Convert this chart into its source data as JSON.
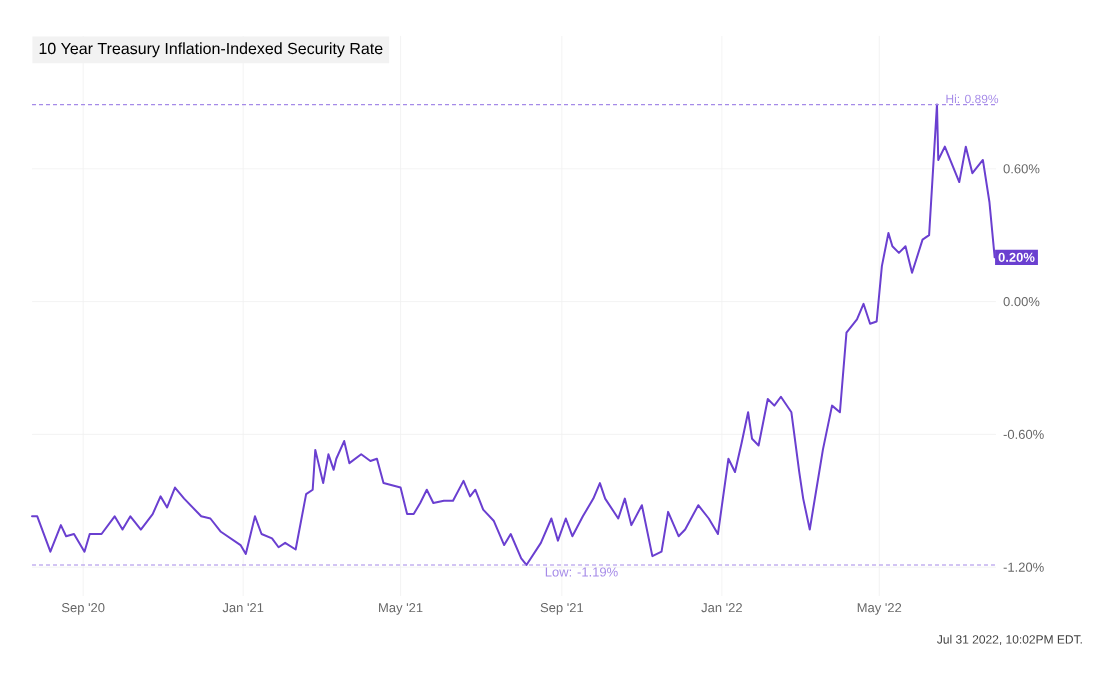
{
  "chart_data": {
    "type": "line",
    "title": "10 Year Treasury Inflation-Indexed Security Rate",
    "x": [
      "2020-07-24",
      "2020-07-28",
      "2020-08-07",
      "2020-08-15",
      "2020-08-19",
      "2020-08-25",
      "2020-09-02",
      "2020-09-06",
      "2020-09-15",
      "2020-09-25",
      "2020-10-01",
      "2020-10-07",
      "2020-10-15",
      "2020-10-24",
      "2020-10-30",
      "2020-11-04",
      "2020-11-10",
      "2020-11-17",
      "2020-11-30",
      "2020-12-07",
      "2020-12-15",
      "2020-12-30",
      "2021-01-03",
      "2021-01-10",
      "2021-01-15",
      "2021-01-23",
      "2021-01-28",
      "2021-02-02",
      "2021-02-10",
      "2021-02-18",
      "2021-02-23",
      "2021-02-25",
      "2021-03-03",
      "2021-03-07",
      "2021-03-11",
      "2021-03-13",
      "2021-03-19",
      "2021-03-23",
      "2021-04-01",
      "2021-04-08",
      "2021-04-13",
      "2021-04-18",
      "2021-05-01",
      "2021-05-06",
      "2021-05-11",
      "2021-05-16",
      "2021-05-21",
      "2021-05-26",
      "2021-06-03",
      "2021-06-10",
      "2021-06-18",
      "2021-06-23",
      "2021-06-27",
      "2021-07-03",
      "2021-07-11",
      "2021-07-19",
      "2021-07-24",
      "2021-08-01",
      "2021-08-05",
      "2021-08-16",
      "2021-08-24",
      "2021-08-29",
      "2021-09-04",
      "2021-09-09",
      "2021-09-17",
      "2021-09-25",
      "2021-09-30",
      "2021-10-04",
      "2021-10-14",
      "2021-10-19",
      "2021-10-24",
      "2021-11-01",
      "2021-11-09",
      "2021-11-16",
      "2021-11-21",
      "2021-11-29",
      "2021-12-04",
      "2021-12-14",
      "2021-12-22",
      "2021-12-29",
      "2022-01-06",
      "2022-01-11",
      "2022-01-16",
      "2022-01-21",
      "2022-01-24",
      "2022-01-29",
      "2022-02-05",
      "2022-02-10",
      "2022-02-15",
      "2022-02-23",
      "2022-03-01",
      "2022-03-04",
      "2022-03-09",
      "2022-03-14",
      "2022-03-19",
      "2022-03-26",
      "2022-04-01",
      "2022-04-06",
      "2022-04-14",
      "2022-04-19",
      "2022-04-24",
      "2022-04-29",
      "2022-05-03",
      "2022-05-08",
      "2022-05-11",
      "2022-05-16",
      "2022-05-21",
      "2022-05-26",
      "2022-06-03",
      "2022-06-08",
      "2022-06-14",
      "2022-06-15",
      "2022-06-20",
      "2022-07-01",
      "2022-07-06",
      "2022-07-11",
      "2022-07-19",
      "2022-07-24",
      "2022-07-28"
    ],
    "series": [
      {
        "color": "#6a3fd0",
        "values": [
          -0.97,
          -0.97,
          -1.13,
          -1.01,
          -1.06,
          -1.05,
          -1.13,
          -1.05,
          -1.05,
          -0.97,
          -1.03,
          -0.97,
          -1.03,
          -0.96,
          -0.88,
          -0.93,
          -0.84,
          -0.89,
          -0.97,
          -0.98,
          -1.04,
          -1.1,
          -1.14,
          -0.97,
          -1.05,
          -1.07,
          -1.11,
          -1.09,
          -1.12,
          -0.87,
          -0.85,
          -0.67,
          -0.82,
          -0.69,
          -0.76,
          -0.71,
          -0.63,
          -0.73,
          -0.69,
          -0.72,
          -0.71,
          -0.82,
          -0.84,
          -0.96,
          -0.96,
          -0.91,
          -0.85,
          -0.91,
          -0.9,
          -0.9,
          -0.81,
          -0.88,
          -0.85,
          -0.94,
          -0.99,
          -1.1,
          -1.05,
          -1.16,
          -1.19,
          -1.09,
          -0.98,
          -1.08,
          -0.98,
          -1.06,
          -0.97,
          -0.89,
          -0.82,
          -0.89,
          -0.98,
          -0.89,
          -1.01,
          -0.92,
          -1.15,
          -1.13,
          -0.95,
          -1.06,
          -1.03,
          -0.92,
          -0.98,
          -1.05,
          -0.71,
          -0.77,
          -0.64,
          -0.5,
          -0.62,
          -0.65,
          -0.44,
          -0.47,
          -0.43,
          -0.5,
          -0.77,
          -0.89,
          -1.03,
          -0.85,
          -0.67,
          -0.47,
          -0.5,
          -0.14,
          -0.08,
          -0.01,
          -0.1,
          -0.09,
          0.16,
          0.31,
          0.25,
          0.22,
          0.25,
          0.13,
          0.28,
          0.3,
          0.89,
          0.64,
          0.7,
          0.54,
          0.7,
          0.58,
          0.64,
          0.45,
          0.2
        ]
      }
    ],
    "xlim": [
      "2020-07-24",
      "2022-07-29"
    ],
    "xticks": [
      {
        "value": "2020-09-01",
        "label": "Sep '20"
      },
      {
        "value": "2021-01-01",
        "label": "Jan '21"
      },
      {
        "value": "2021-05-01",
        "label": "May '21"
      },
      {
        "value": "2021-09-01",
        "label": "Sep '21"
      },
      {
        "value": "2022-01-01",
        "label": "Jan '22"
      },
      {
        "value": "2022-05-01",
        "label": "May '22"
      }
    ],
    "ylim": [
      -1.33,
      1.2
    ],
    "yticks": [
      {
        "value": -1.2,
        "label": "-1.20%"
      },
      {
        "value": -0.6,
        "label": "-0.60%"
      },
      {
        "value": 0,
        "label": "0.00%"
      },
      {
        "value": 0.6,
        "label": "0.60%"
      }
    ],
    "ref_lines": [
      {
        "axis": "y",
        "value": 0.89,
        "label": "Hi: 0.89%",
        "color": "#a58ae8",
        "line_style": "dashed"
      },
      {
        "axis": "y",
        "value": -1.19,
        "label": "Low: -1.19%",
        "color": "#a58ae8",
        "line_style": "dashed"
      }
    ],
    "annotations": [
      {
        "text": "0.20%",
        "x": "2022-07-28",
        "y": 0.2
      },
      "Jul 31 2022, 10:02PM EDT."
    ],
    "grid": true,
    "marker": "none",
    "line_style": "solid"
  }
}
